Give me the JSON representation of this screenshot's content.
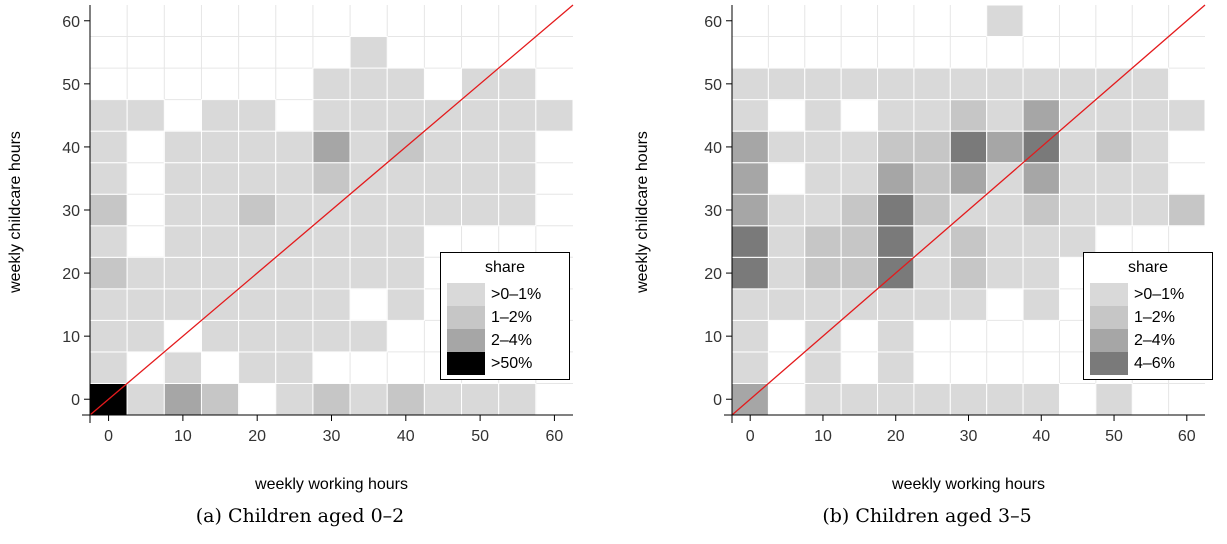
{
  "chart_data": [
    {
      "type": "heatmap",
      "caption": "(a) Children aged 0–2",
      "xlabel": "weekly working hours",
      "ylabel": "weekly childcare hours",
      "xlim": [
        -2.5,
        62.5
      ],
      "ylim": [
        -2.5,
        62.5
      ],
      "xticks": [
        0,
        10,
        20,
        30,
        40,
        50,
        60
      ],
      "yticks": [
        0,
        10,
        20,
        30,
        40,
        50,
        60
      ],
      "bin_width": 5,
      "reference_line": "y = x",
      "legend_title": "share",
      "legend": [
        {
          "label": ">0–1%",
          "color": "#d9d9d9"
        },
        {
          "label": "1–2%",
          "color": "#c6c6c6"
        },
        {
          "label": "2–4%",
          "color": "#a6a6a6"
        },
        {
          "label": ">50%",
          "color": "#000000"
        }
      ],
      "cells": [
        [
          0,
          0,
          4
        ],
        [
          5,
          0,
          1
        ],
        [
          10,
          0,
          3
        ],
        [
          15,
          0,
          2
        ],
        [
          25,
          0,
          1
        ],
        [
          30,
          0,
          2
        ],
        [
          35,
          0,
          1
        ],
        [
          40,
          0,
          2
        ],
        [
          45,
          0,
          1
        ],
        [
          50,
          0,
          1
        ],
        [
          55,
          0,
          1
        ],
        [
          0,
          5,
          1
        ],
        [
          10,
          5,
          1
        ],
        [
          20,
          5,
          1
        ],
        [
          25,
          5,
          1
        ],
        [
          0,
          10,
          1
        ],
        [
          5,
          10,
          1
        ],
        [
          15,
          10,
          1
        ],
        [
          20,
          10,
          1
        ],
        [
          25,
          10,
          1
        ],
        [
          30,
          10,
          1
        ],
        [
          35,
          10,
          1
        ],
        [
          0,
          15,
          1
        ],
        [
          5,
          15,
          1
        ],
        [
          10,
          15,
          1
        ],
        [
          15,
          15,
          1
        ],
        [
          20,
          15,
          1
        ],
        [
          25,
          15,
          1
        ],
        [
          30,
          15,
          1
        ],
        [
          40,
          15,
          1
        ],
        [
          0,
          20,
          2
        ],
        [
          5,
          20,
          1
        ],
        [
          10,
          20,
          1
        ],
        [
          15,
          20,
          1
        ],
        [
          20,
          20,
          1
        ],
        [
          25,
          20,
          1
        ],
        [
          30,
          20,
          1
        ],
        [
          35,
          20,
          1
        ],
        [
          40,
          20,
          1
        ],
        [
          0,
          25,
          1
        ],
        [
          10,
          25,
          1
        ],
        [
          15,
          25,
          1
        ],
        [
          20,
          25,
          1
        ],
        [
          25,
          25,
          1
        ],
        [
          30,
          25,
          1
        ],
        [
          35,
          25,
          1
        ],
        [
          40,
          25,
          1
        ],
        [
          0,
          30,
          2
        ],
        [
          10,
          30,
          1
        ],
        [
          15,
          30,
          1
        ],
        [
          20,
          30,
          2
        ],
        [
          25,
          30,
          1
        ],
        [
          30,
          30,
          1
        ],
        [
          35,
          30,
          1
        ],
        [
          40,
          30,
          1
        ],
        [
          45,
          30,
          1
        ],
        [
          50,
          30,
          1
        ],
        [
          55,
          30,
          1
        ],
        [
          0,
          35,
          1
        ],
        [
          10,
          35,
          1
        ],
        [
          15,
          35,
          1
        ],
        [
          20,
          35,
          1
        ],
        [
          25,
          35,
          1
        ],
        [
          30,
          35,
          2
        ],
        [
          35,
          35,
          1
        ],
        [
          40,
          35,
          1
        ],
        [
          45,
          35,
          1
        ],
        [
          50,
          35,
          1
        ],
        [
          55,
          35,
          1
        ],
        [
          0,
          40,
          1
        ],
        [
          10,
          40,
          1
        ],
        [
          15,
          40,
          1
        ],
        [
          20,
          40,
          1
        ],
        [
          25,
          40,
          1
        ],
        [
          30,
          40,
          3
        ],
        [
          35,
          40,
          1
        ],
        [
          40,
          40,
          2
        ],
        [
          45,
          40,
          1
        ],
        [
          50,
          40,
          1
        ],
        [
          55,
          40,
          1
        ],
        [
          0,
          45,
          1
        ],
        [
          5,
          45,
          1
        ],
        [
          15,
          45,
          1
        ],
        [
          20,
          45,
          1
        ],
        [
          30,
          45,
          1
        ],
        [
          35,
          45,
          1
        ],
        [
          40,
          45,
          1
        ],
        [
          45,
          45,
          1
        ],
        [
          50,
          45,
          1
        ],
        [
          55,
          45,
          1
        ],
        [
          60,
          45,
          1
        ],
        [
          30,
          50,
          1
        ],
        [
          35,
          50,
          1
        ],
        [
          40,
          50,
          1
        ],
        [
          50,
          50,
          1
        ],
        [
          55,
          50,
          1
        ],
        [
          35,
          55,
          1
        ]
      ]
    },
    {
      "type": "heatmap",
      "caption": "(b) Children aged 3–5",
      "xlabel": "weekly working hours",
      "ylabel": "weekly childcare hours",
      "xlim": [
        -2.5,
        62.5
      ],
      "ylim": [
        -2.5,
        62.5
      ],
      "xticks": [
        0,
        10,
        20,
        30,
        40,
        50,
        60
      ],
      "yticks": [
        0,
        10,
        20,
        30,
        40,
        50,
        60
      ],
      "bin_width": 5,
      "reference_line": "y = x",
      "legend_title": "share",
      "legend": [
        {
          "label": ">0–1%",
          "color": "#d9d9d9"
        },
        {
          "label": "1–2%",
          "color": "#c6c6c6"
        },
        {
          "label": "2–4%",
          "color": "#a6a6a6"
        },
        {
          "label": "4–6%",
          "color": "#7a7a7a"
        }
      ],
      "cells": [
        [
          0,
          0,
          3
        ],
        [
          10,
          0,
          1
        ],
        [
          15,
          0,
          1
        ],
        [
          20,
          0,
          1
        ],
        [
          25,
          0,
          1
        ],
        [
          30,
          0,
          1
        ],
        [
          35,
          0,
          1
        ],
        [
          40,
          0,
          1
        ],
        [
          50,
          0,
          1
        ],
        [
          0,
          5,
          1
        ],
        [
          10,
          5,
          1
        ],
        [
          20,
          5,
          1
        ],
        [
          0,
          10,
          1
        ],
        [
          10,
          10,
          1
        ],
        [
          20,
          10,
          1
        ],
        [
          0,
          15,
          1
        ],
        [
          5,
          15,
          1
        ],
        [
          10,
          15,
          1
        ],
        [
          15,
          15,
          1
        ],
        [
          20,
          15,
          1
        ],
        [
          25,
          15,
          1
        ],
        [
          30,
          15,
          1
        ],
        [
          40,
          15,
          1
        ],
        [
          0,
          20,
          4
        ],
        [
          5,
          20,
          1
        ],
        [
          10,
          20,
          2
        ],
        [
          15,
          20,
          2
        ],
        [
          20,
          20,
          4
        ],
        [
          25,
          20,
          1
        ],
        [
          30,
          20,
          2
        ],
        [
          35,
          20,
          1
        ],
        [
          40,
          20,
          1
        ],
        [
          0,
          25,
          4
        ],
        [
          5,
          25,
          1
        ],
        [
          10,
          25,
          2
        ],
        [
          15,
          25,
          2
        ],
        [
          20,
          25,
          4
        ],
        [
          25,
          25,
          1
        ],
        [
          30,
          25,
          2
        ],
        [
          35,
          25,
          1
        ],
        [
          40,
          25,
          1
        ],
        [
          45,
          25,
          1
        ],
        [
          0,
          30,
          3
        ],
        [
          5,
          30,
          1
        ],
        [
          10,
          30,
          1
        ],
        [
          15,
          30,
          2
        ],
        [
          20,
          30,
          4
        ],
        [
          25,
          30,
          2
        ],
        [
          30,
          30,
          1
        ],
        [
          35,
          30,
          1
        ],
        [
          40,
          30,
          2
        ],
        [
          45,
          30,
          1
        ],
        [
          50,
          30,
          1
        ],
        [
          55,
          30,
          1
        ],
        [
          60,
          30,
          2
        ],
        [
          0,
          35,
          3
        ],
        [
          10,
          35,
          1
        ],
        [
          15,
          35,
          1
        ],
        [
          20,
          35,
          3
        ],
        [
          25,
          35,
          2
        ],
        [
          30,
          35,
          3
        ],
        [
          35,
          35,
          1
        ],
        [
          40,
          35,
          3
        ],
        [
          45,
          35,
          1
        ],
        [
          50,
          35,
          1
        ],
        [
          55,
          35,
          1
        ],
        [
          0,
          40,
          3
        ],
        [
          5,
          40,
          1
        ],
        [
          10,
          40,
          1
        ],
        [
          15,
          40,
          1
        ],
        [
          20,
          40,
          2
        ],
        [
          25,
          40,
          2
        ],
        [
          30,
          40,
          4
        ],
        [
          35,
          40,
          3
        ],
        [
          40,
          40,
          4
        ],
        [
          45,
          40,
          1
        ],
        [
          50,
          40,
          2
        ],
        [
          55,
          40,
          1
        ],
        [
          0,
          45,
          1
        ],
        [
          10,
          45,
          1
        ],
        [
          20,
          45,
          1
        ],
        [
          25,
          45,
          1
        ],
        [
          30,
          45,
          2
        ],
        [
          35,
          45,
          1
        ],
        [
          40,
          45,
          3
        ],
        [
          45,
          45,
          1
        ],
        [
          50,
          45,
          1
        ],
        [
          55,
          45,
          1
        ],
        [
          60,
          45,
          1
        ],
        [
          0,
          50,
          1
        ],
        [
          5,
          50,
          1
        ],
        [
          10,
          50,
          1
        ],
        [
          15,
          50,
          1
        ],
        [
          20,
          50,
          1
        ],
        [
          25,
          50,
          1
        ],
        [
          30,
          50,
          1
        ],
        [
          35,
          50,
          1
        ],
        [
          40,
          50,
          1
        ],
        [
          45,
          50,
          1
        ],
        [
          50,
          50,
          1
        ],
        [
          55,
          50,
          1
        ],
        [
          35,
          60,
          1
        ]
      ]
    }
  ]
}
